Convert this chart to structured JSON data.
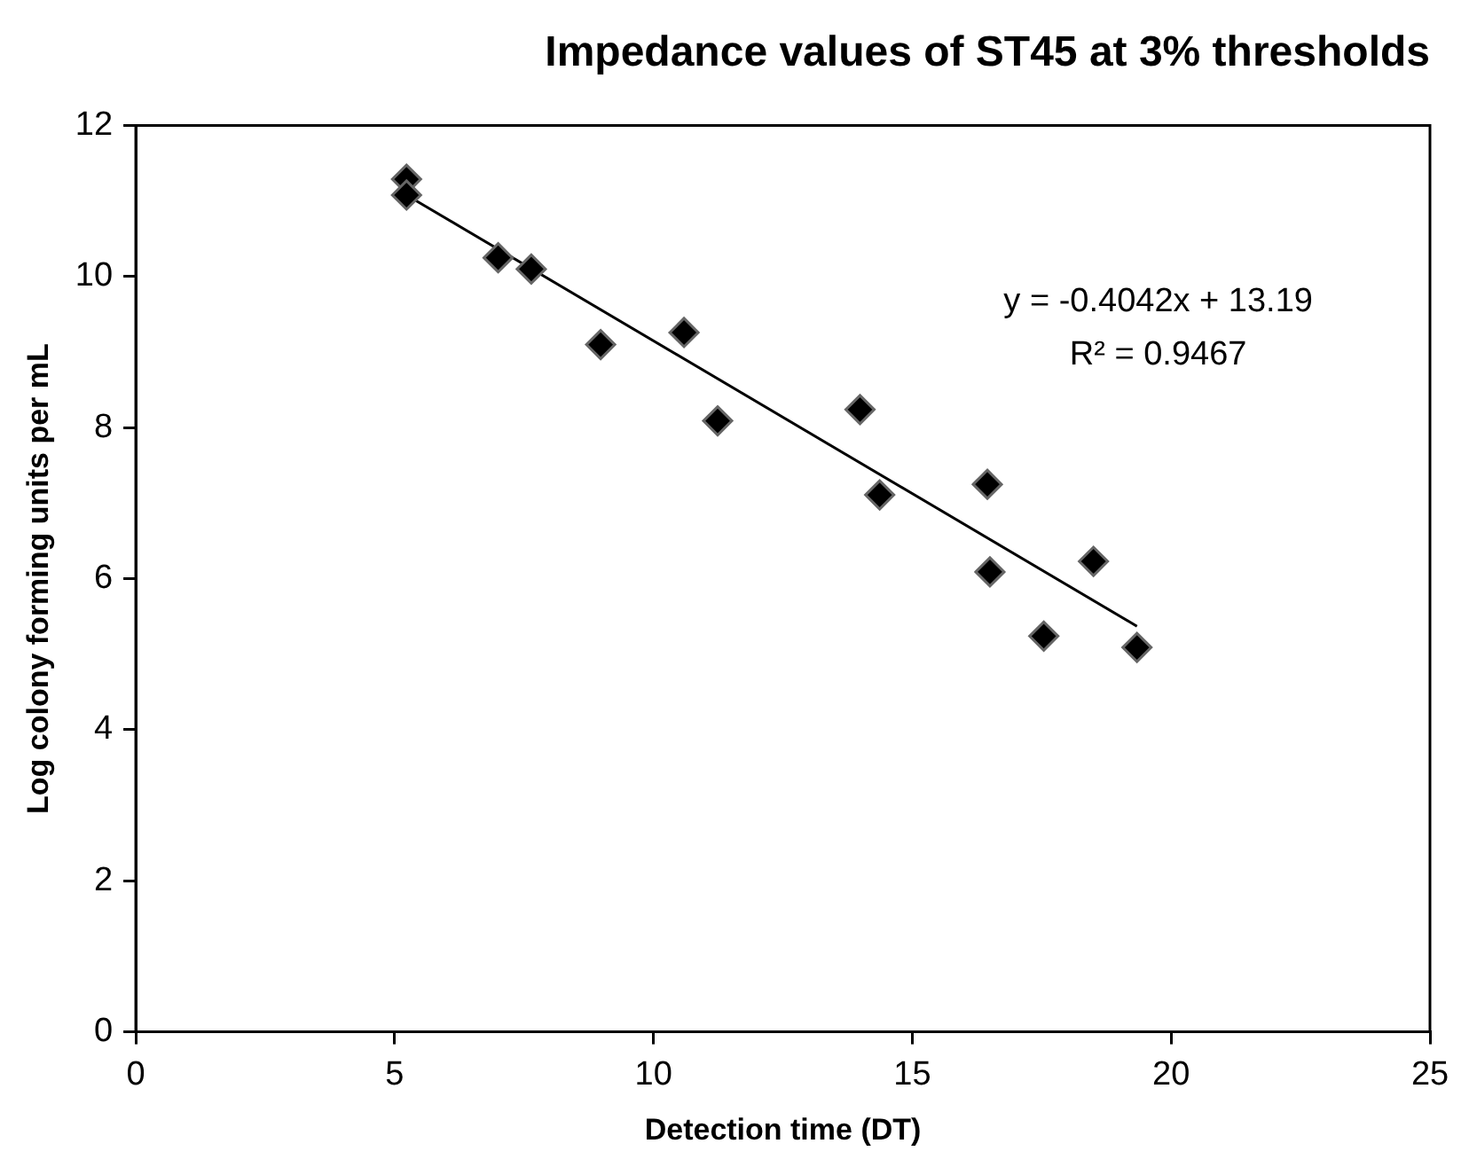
{
  "chart_data": {
    "type": "scatter",
    "title": "Impedance values of ST45 at 3% thresholds",
    "xlabel": "Detection time (DT)",
    "ylabel": "Log colony forming units per mL",
    "annotations": [
      "y = -0.4042x + 13.19",
      "R² = 0.9467"
    ],
    "xlim": [
      0,
      25
    ],
    "xticks": [
      0,
      5,
      10,
      15,
      20,
      25
    ],
    "ylim": [
      0,
      12
    ],
    "yticks": [
      0,
      2,
      4,
      6,
      8,
      10,
      12
    ],
    "grid": false,
    "legend": false,
    "series": [
      {
        "type": "scatter",
        "marker": "diamond",
        "color": "#000000",
        "x": [
          5.23,
          5.23,
          7.0,
          7.64,
          8.98,
          10.59,
          11.24,
          13.99,
          14.37,
          16.45,
          16.5,
          18.5,
          17.54,
          19.34
        ],
        "values": [
          11.29,
          11.08,
          10.25,
          10.1,
          9.1,
          9.26,
          8.09,
          8.24,
          7.11,
          7.25,
          6.09,
          6.23,
          5.24,
          5.09
        ]
      },
      {
        "type": "line",
        "marker": "none",
        "line_style": "solid",
        "color": "#000000",
        "x": [
          5.23,
          19.34
        ],
        "values": [
          11.08,
          5.37
        ]
      }
    ]
  }
}
